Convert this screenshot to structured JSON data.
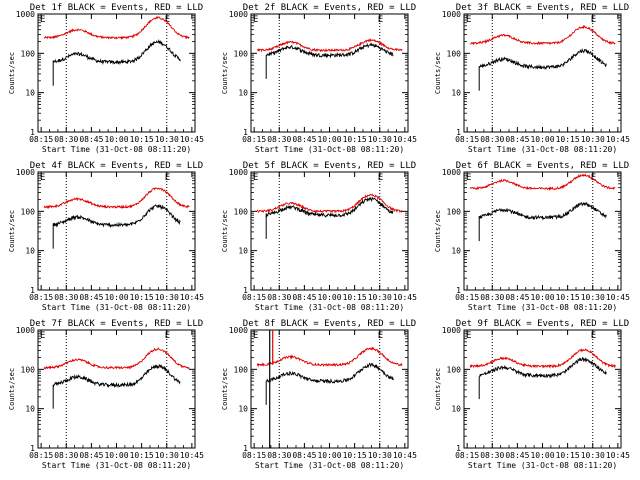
{
  "colors": {
    "events": "#000000",
    "lld": "#e00000",
    "axis": "#000000",
    "background": "#ffffff"
  },
  "axes": {
    "xlabel": "Start Time (31-Oct-08 08:11:20)",
    "ylabel": "Counts/sec",
    "xticks": [
      "08:15",
      "08:30",
      "08:45",
      "10:00",
      "10:15",
      "10:30",
      "10:45"
    ],
    "yticks": [
      "1",
      "10",
      "100",
      "1000"
    ],
    "yscale": "log",
    "ylim": [
      1,
      1000
    ],
    "markers": [
      "08:30",
      "10:30"
    ]
  },
  "chart_data": [
    {
      "type": "line",
      "title": "Det 1f BLACK = Events, RED = LLD",
      "events_level": 60,
      "lld_level": 250,
      "flare_gain": 3.2,
      "spike": false
    },
    {
      "type": "line",
      "title": "Det 2f BLACK = Events, RED = LLD",
      "events_level": 90,
      "lld_level": 120,
      "flare_gain": 1.8,
      "spike": false
    },
    {
      "type": "line",
      "title": "Det 3f BLACK = Events, RED = LLD",
      "events_level": 45,
      "lld_level": 180,
      "flare_gain": 2.6,
      "spike": false
    },
    {
      "type": "line",
      "title": "Det 4f BLACK = Events, RED = LLD",
      "events_level": 45,
      "lld_level": 130,
      "flare_gain": 3.0,
      "spike": false
    },
    {
      "type": "line",
      "title": "Det 5f BLACK = Events, RED = LLD",
      "events_level": 80,
      "lld_level": 100,
      "flare_gain": 2.6,
      "spike": false
    },
    {
      "type": "line",
      "title": "Det 6f BLACK = Events, RED = LLD",
      "events_level": 70,
      "lld_level": 380,
      "flare_gain": 2.2,
      "spike": false
    },
    {
      "type": "line",
      "title": "Det 7f BLACK = Events, RED = LLD",
      "events_level": 40,
      "lld_level": 110,
      "flare_gain": 3.0,
      "spike": false
    },
    {
      "type": "line",
      "title": "Det 8f BLACK = Events, RED = LLD",
      "events_level": 50,
      "lld_level": 130,
      "flare_gain": 2.6,
      "spike": true
    },
    {
      "type": "line",
      "title": "Det 9f BLACK = Events, RED = LLD",
      "events_level": 70,
      "lld_level": 120,
      "flare_gain": 2.6,
      "spike": false
    }
  ]
}
